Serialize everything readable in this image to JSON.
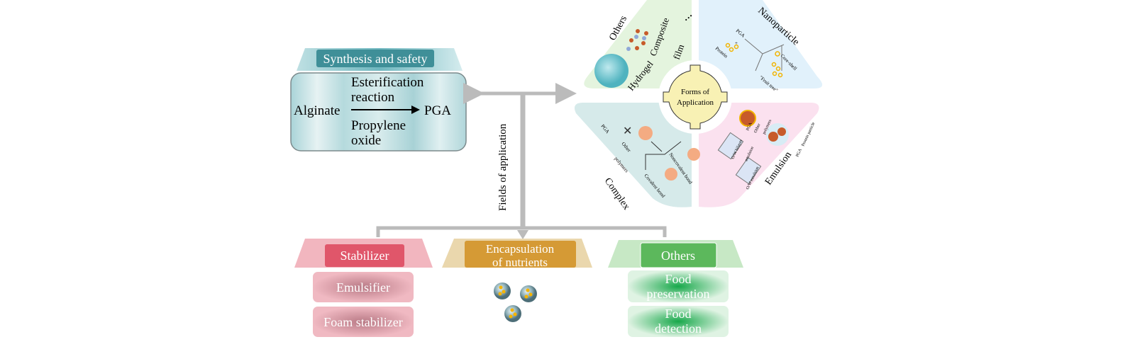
{
  "synthesis": {
    "title": "Synthesis and safety",
    "reactant": "Alginate",
    "product": "PGA",
    "above_arrow": [
      "Esterification",
      "reaction"
    ],
    "below_arrow": [
      "Propylene",
      "oxide"
    ]
  },
  "fields_label": "Fields of application",
  "forms": {
    "center": [
      "Forms of",
      "Application"
    ],
    "others": {
      "title": "Others",
      "labels": [
        "Hydrogel",
        "Composite",
        "film",
        "..."
      ]
    },
    "nanoparticle": {
      "title": "Nanoparticle",
      "labels": [
        "PGA",
        "Protein",
        "+",
        "Core-shell",
        "\"Fruit tree\""
      ]
    },
    "complex": {
      "title": "Complex",
      "labels": [
        "PGA",
        "Other",
        "polymers",
        "Noncovalent bond",
        "Covalent bond"
      ]
    },
    "emulsion": {
      "title": "Emulsion",
      "labels": [
        "PGA",
        "Other",
        "polymers",
        "O/W bilayer",
        "emulsion",
        "O/W emulsion",
        "PGA",
        "Protein particle"
      ]
    }
  },
  "categories": [
    {
      "title": "Stabilizer",
      "items": [
        "Emulsifier",
        "Foam stabilizer"
      ],
      "color": "#e0566a"
    },
    {
      "title": [
        "Encapsulation",
        "of nutrients"
      ],
      "items": [],
      "color": "#d59a35"
    },
    {
      "title": "Others",
      "items": [
        [
          "Food",
          "preservation"
        ],
        [
          "Food",
          "detection"
        ]
      ],
      "color": "#5cb85c"
    }
  ]
}
